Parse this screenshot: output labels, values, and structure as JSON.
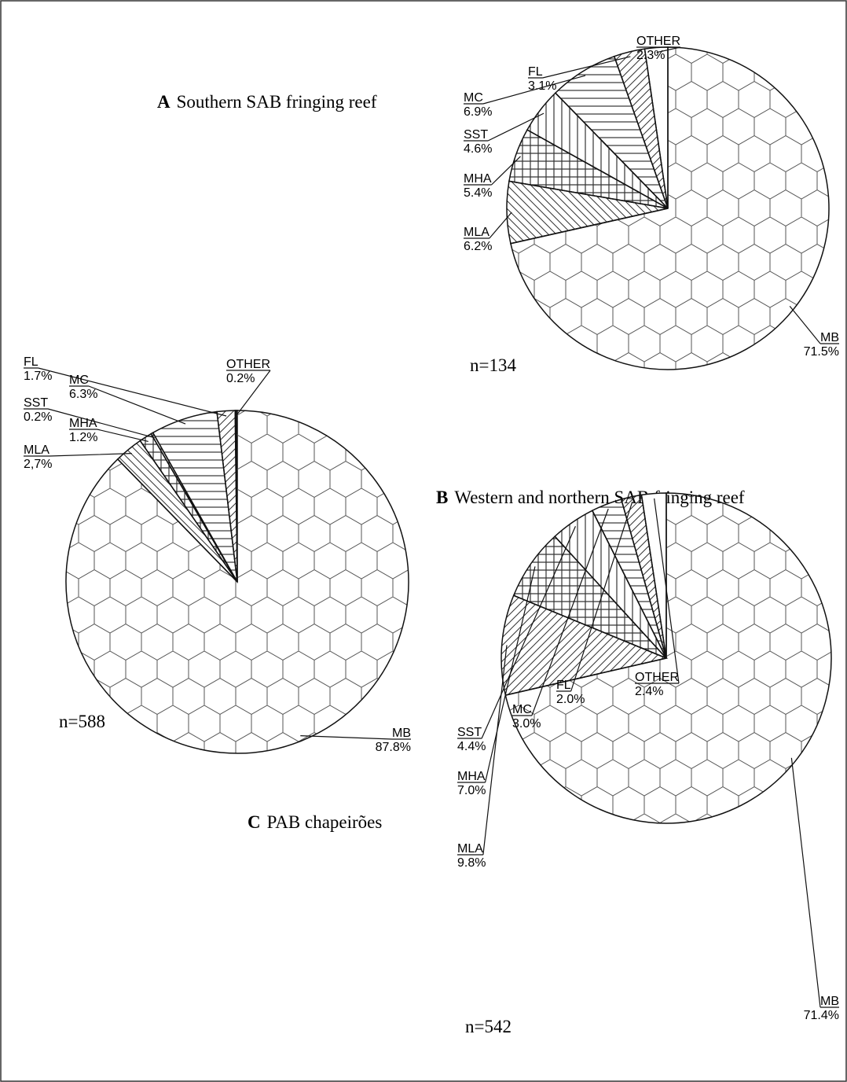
{
  "chart_data": [
    {
      "type": "pie",
      "panel": "A",
      "title": "Southern SAB fringing reef",
      "annotation": "n=134",
      "categories": [
        "OTHER",
        "FL",
        "MC",
        "SST",
        "MHA",
        "MLA",
        "MB"
      ],
      "values": [
        2.3,
        3.1,
        6.9,
        4.6,
        5.4,
        6.2,
        71.5
      ],
      "value_labels": [
        "2.3%",
        "3.1%",
        "6.9%",
        "4.6%",
        "5.4%",
        "6.2%",
        "71.5%"
      ]
    },
    {
      "type": "pie",
      "panel": "B",
      "title": "Western and northern SAB fringing reef",
      "annotation": "n=588",
      "categories": [
        "OTHER",
        "FL",
        "MC",
        "SST",
        "MHA",
        "MLA",
        "MB"
      ],
      "values": [
        0.2,
        1.7,
        6.3,
        0.2,
        1.2,
        2.7,
        87.8
      ],
      "value_labels": [
        "0.2%",
        "1.7%",
        "6.3%",
        "0.2%",
        "1.2%",
        "2,7%",
        "87.8%"
      ]
    },
    {
      "type": "pie",
      "panel": "C",
      "title": "PAB chapeirões",
      "annotation": "n=542",
      "categories": [
        "OTHER",
        "FL",
        "MC",
        "SST",
        "MHA",
        "MLA",
        "MB"
      ],
      "values": [
        2.4,
        2.0,
        3.0,
        4.4,
        7.0,
        9.8,
        71.4
      ],
      "value_labels": [
        "2.4%",
        "2.0%",
        "3.0%",
        "4.4%",
        "7.0%",
        "9.8%",
        "71.4%"
      ]
    }
  ]
}
